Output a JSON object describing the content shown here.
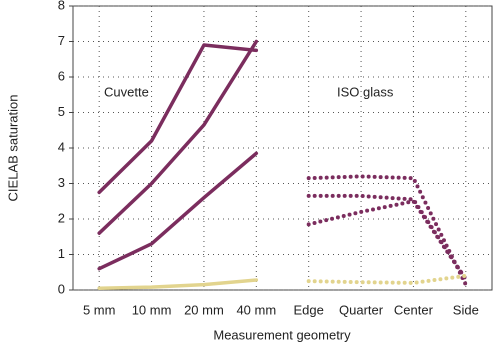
{
  "chart_data": {
    "type": "line",
    "ylabel": "CIELAB saturation",
    "xlabel": "Measurement geometry",
    "annotations": [
      "Cuvette",
      "ISO glass"
    ],
    "categories": [
      "5 mm",
      "10 mm",
      "20 mm",
      "40 mm",
      "Edge",
      "Quarter",
      "Center",
      "Side"
    ],
    "ylim": [
      0,
      8
    ],
    "yticks": [
      0,
      1,
      2,
      3,
      4,
      5,
      6,
      7,
      8
    ],
    "grid": true,
    "series": [
      {
        "color": "#7b2d5e",
        "style": "solid",
        "values": [
          2.75,
          4.2,
          6.9,
          6.75,
          null,
          null,
          null,
          null
        ]
      },
      {
        "color": "#7b2d5e",
        "style": "solid",
        "values": [
          1.6,
          3.0,
          4.65,
          7.0,
          null,
          null,
          null,
          null
        ]
      },
      {
        "color": "#7b2d5e",
        "style": "solid",
        "values": [
          0.6,
          1.3,
          2.6,
          3.85,
          null,
          null,
          null,
          null
        ]
      },
      {
        "color": "#e2d48e",
        "style": "solid",
        "values": [
          0.05,
          0.08,
          0.15,
          0.28,
          null,
          null,
          null,
          null
        ]
      },
      {
        "color": "#7b2d5e",
        "style": "dotted",
        "values": [
          null,
          null,
          null,
          null,
          3.15,
          3.2,
          3.15,
          0.15
        ]
      },
      {
        "color": "#7b2d5e",
        "style": "dotted",
        "values": [
          null,
          null,
          null,
          null,
          2.65,
          2.65,
          2.55,
          0.3
        ]
      },
      {
        "color": "#7b2d5e",
        "style": "dotted",
        "values": [
          null,
          null,
          null,
          null,
          1.85,
          2.2,
          2.5,
          0.3
        ]
      },
      {
        "color": "#e2d48e",
        "style": "dotted",
        "values": [
          null,
          null,
          null,
          null,
          0.25,
          0.22,
          0.2,
          0.4
        ]
      }
    ]
  }
}
